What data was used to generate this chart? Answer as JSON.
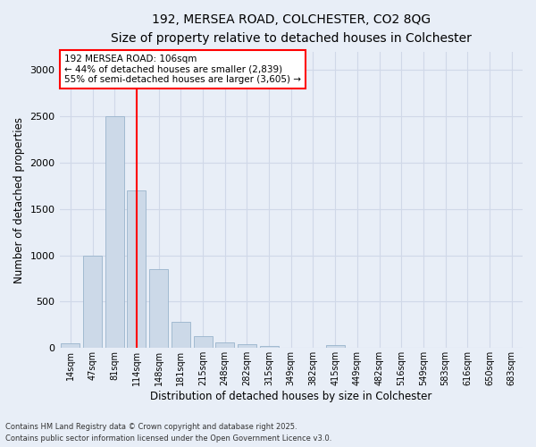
{
  "title1": "192, MERSEA ROAD, COLCHESTER, CO2 8QG",
  "title2": "Size of property relative to detached houses in Colchester",
  "xlabel": "Distribution of detached houses by size in Colchester",
  "ylabel": "Number of detached properties",
  "categories": [
    "14sqm",
    "47sqm",
    "81sqm",
    "114sqm",
    "148sqm",
    "181sqm",
    "215sqm",
    "248sqm",
    "282sqm",
    "315sqm",
    "349sqm",
    "382sqm",
    "415sqm",
    "449sqm",
    "482sqm",
    "516sqm",
    "549sqm",
    "583sqm",
    "616sqm",
    "650sqm",
    "683sqm"
  ],
  "values": [
    50,
    1000,
    2500,
    1700,
    850,
    280,
    130,
    60,
    40,
    20,
    0,
    0,
    30,
    0,
    0,
    0,
    0,
    0,
    0,
    0,
    0
  ],
  "bar_color": "#ccd9e8",
  "bar_edge_color": "#99b4cc",
  "vline_x": 3.0,
  "vline_color": "red",
  "annotation_text": "192 MERSEA ROAD: 106sqm\n← 44% of detached houses are smaller (2,839)\n55% of semi-detached houses are larger (3,605) →",
  "annotation_box_color": "white",
  "annotation_box_edge": "red",
  "ylim": [
    0,
    3200
  ],
  "yticks": [
    0,
    500,
    1000,
    1500,
    2000,
    2500,
    3000
  ],
  "footer1": "Contains HM Land Registry data © Crown copyright and database right 2025.",
  "footer2": "Contains public sector information licensed under the Open Government Licence v3.0.",
  "bg_color": "#e8eef7",
  "grid_color": "#d0d8e8"
}
